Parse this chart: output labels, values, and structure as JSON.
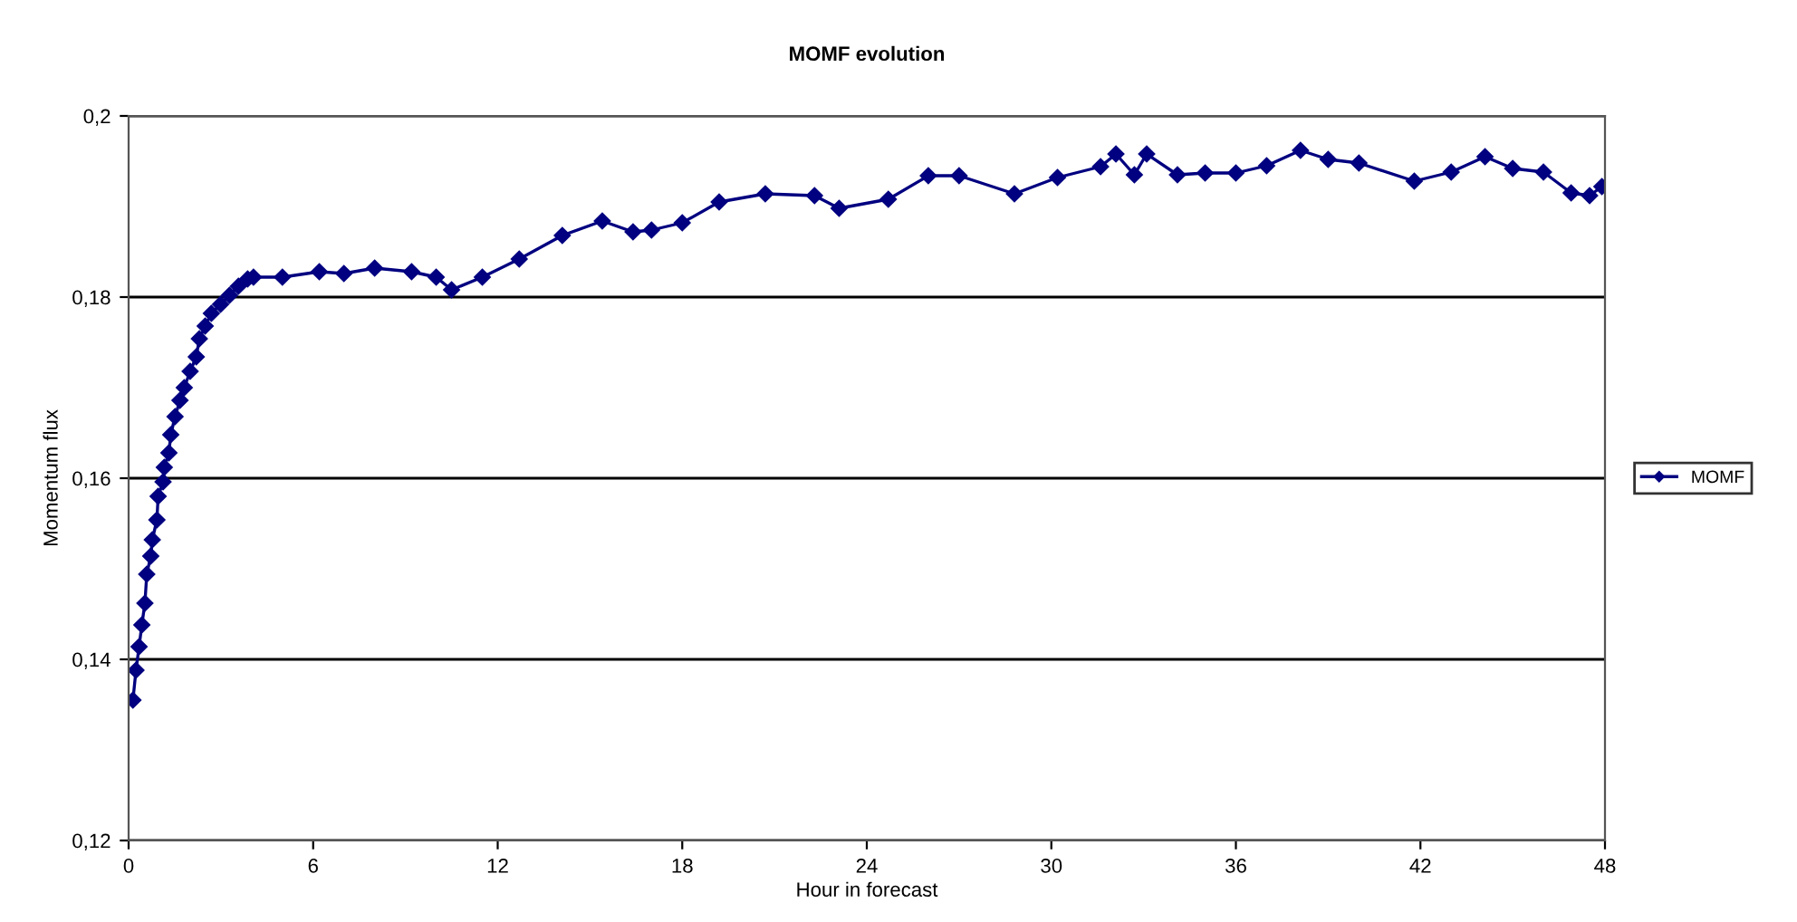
{
  "chart_data": {
    "type": "line",
    "title": "MOMF evolution",
    "xlabel": "Hour in forecast",
    "ylabel": "Momentum flux",
    "xlim": [
      0,
      48
    ],
    "ylim": [
      0.12,
      0.2
    ],
    "xticks": [
      {
        "value": 0,
        "label": "0"
      },
      {
        "value": 6,
        "label": "6"
      },
      {
        "value": 12,
        "label": "12"
      },
      {
        "value": 18,
        "label": "18"
      },
      {
        "value": 24,
        "label": "24"
      },
      {
        "value": 30,
        "label": "30"
      },
      {
        "value": 36,
        "label": "36"
      },
      {
        "value": 42,
        "label": "42"
      },
      {
        "value": 48,
        "label": "48"
      }
    ],
    "yticks": [
      {
        "value": 0.12,
        "label": "0,12"
      },
      {
        "value": 0.14,
        "label": "0,14"
      },
      {
        "value": 0.16,
        "label": "0,16"
      },
      {
        "value": 0.18,
        "label": "0,18"
      },
      {
        "value": 0.2,
        "label": "0,2"
      }
    ],
    "grid": "y",
    "legend": "right",
    "marker": "diamond",
    "line_style": "solid",
    "series": [
      {
        "name": "MOMF",
        "color": "#000080",
        "x": [
          0.14,
          0.24,
          0.34,
          0.43,
          0.53,
          0.59,
          0.72,
          0.77,
          0.92,
          0.96,
          1.12,
          1.16,
          1.31,
          1.37,
          1.51,
          1.67,
          1.81,
          2.0,
          2.2,
          2.3,
          2.49,
          2.69,
          2.99,
          3.28,
          3.57,
          3.87,
          4.06,
          5.0,
          6.2,
          7.0,
          8.0,
          9.2,
          10.0,
          10.5,
          11.5,
          12.7,
          14.1,
          15.4,
          16.4,
          17.0,
          18.0,
          19.2,
          20.7,
          22.3,
          23.1,
          24.7,
          26.0,
          27.0,
          28.8,
          30.2,
          31.6,
          32.1,
          32.7,
          33.1,
          34.1,
          35.0,
          36.0,
          37.0,
          38.1,
          39.0,
          40.0,
          41.8,
          43.0,
          44.1,
          45.0,
          46.0,
          46.9,
          47.5,
          47.9
        ],
        "values": [
          0.1355,
          0.1388,
          0.1414,
          0.1438,
          0.1462,
          0.1494,
          0.1514,
          0.1532,
          0.1554,
          0.158,
          0.1596,
          0.1612,
          0.1628,
          0.1648,
          0.1668,
          0.1686,
          0.17,
          0.1718,
          0.1734,
          0.1754,
          0.1768,
          0.1782,
          0.1792,
          0.1802,
          0.1812,
          0.182,
          0.1822,
          0.1822,
          0.1828,
          0.1826,
          0.1832,
          0.1828,
          0.1822,
          0.1808,
          0.1822,
          0.1842,
          0.1868,
          0.1884,
          0.1872,
          0.1874,
          0.1882,
          0.1905,
          0.1914,
          0.1912,
          0.1898,
          0.1908,
          0.1934,
          0.1934,
          0.1914,
          0.1932,
          0.1944,
          0.1958,
          0.1935,
          0.1958,
          0.1935,
          0.1937,
          0.1937,
          0.1945,
          0.1962,
          0.1952,
          0.1948,
          0.1928,
          0.1938,
          0.1955,
          0.1942,
          0.1938,
          0.1915,
          0.1912,
          0.1922
        ]
      }
    ]
  }
}
